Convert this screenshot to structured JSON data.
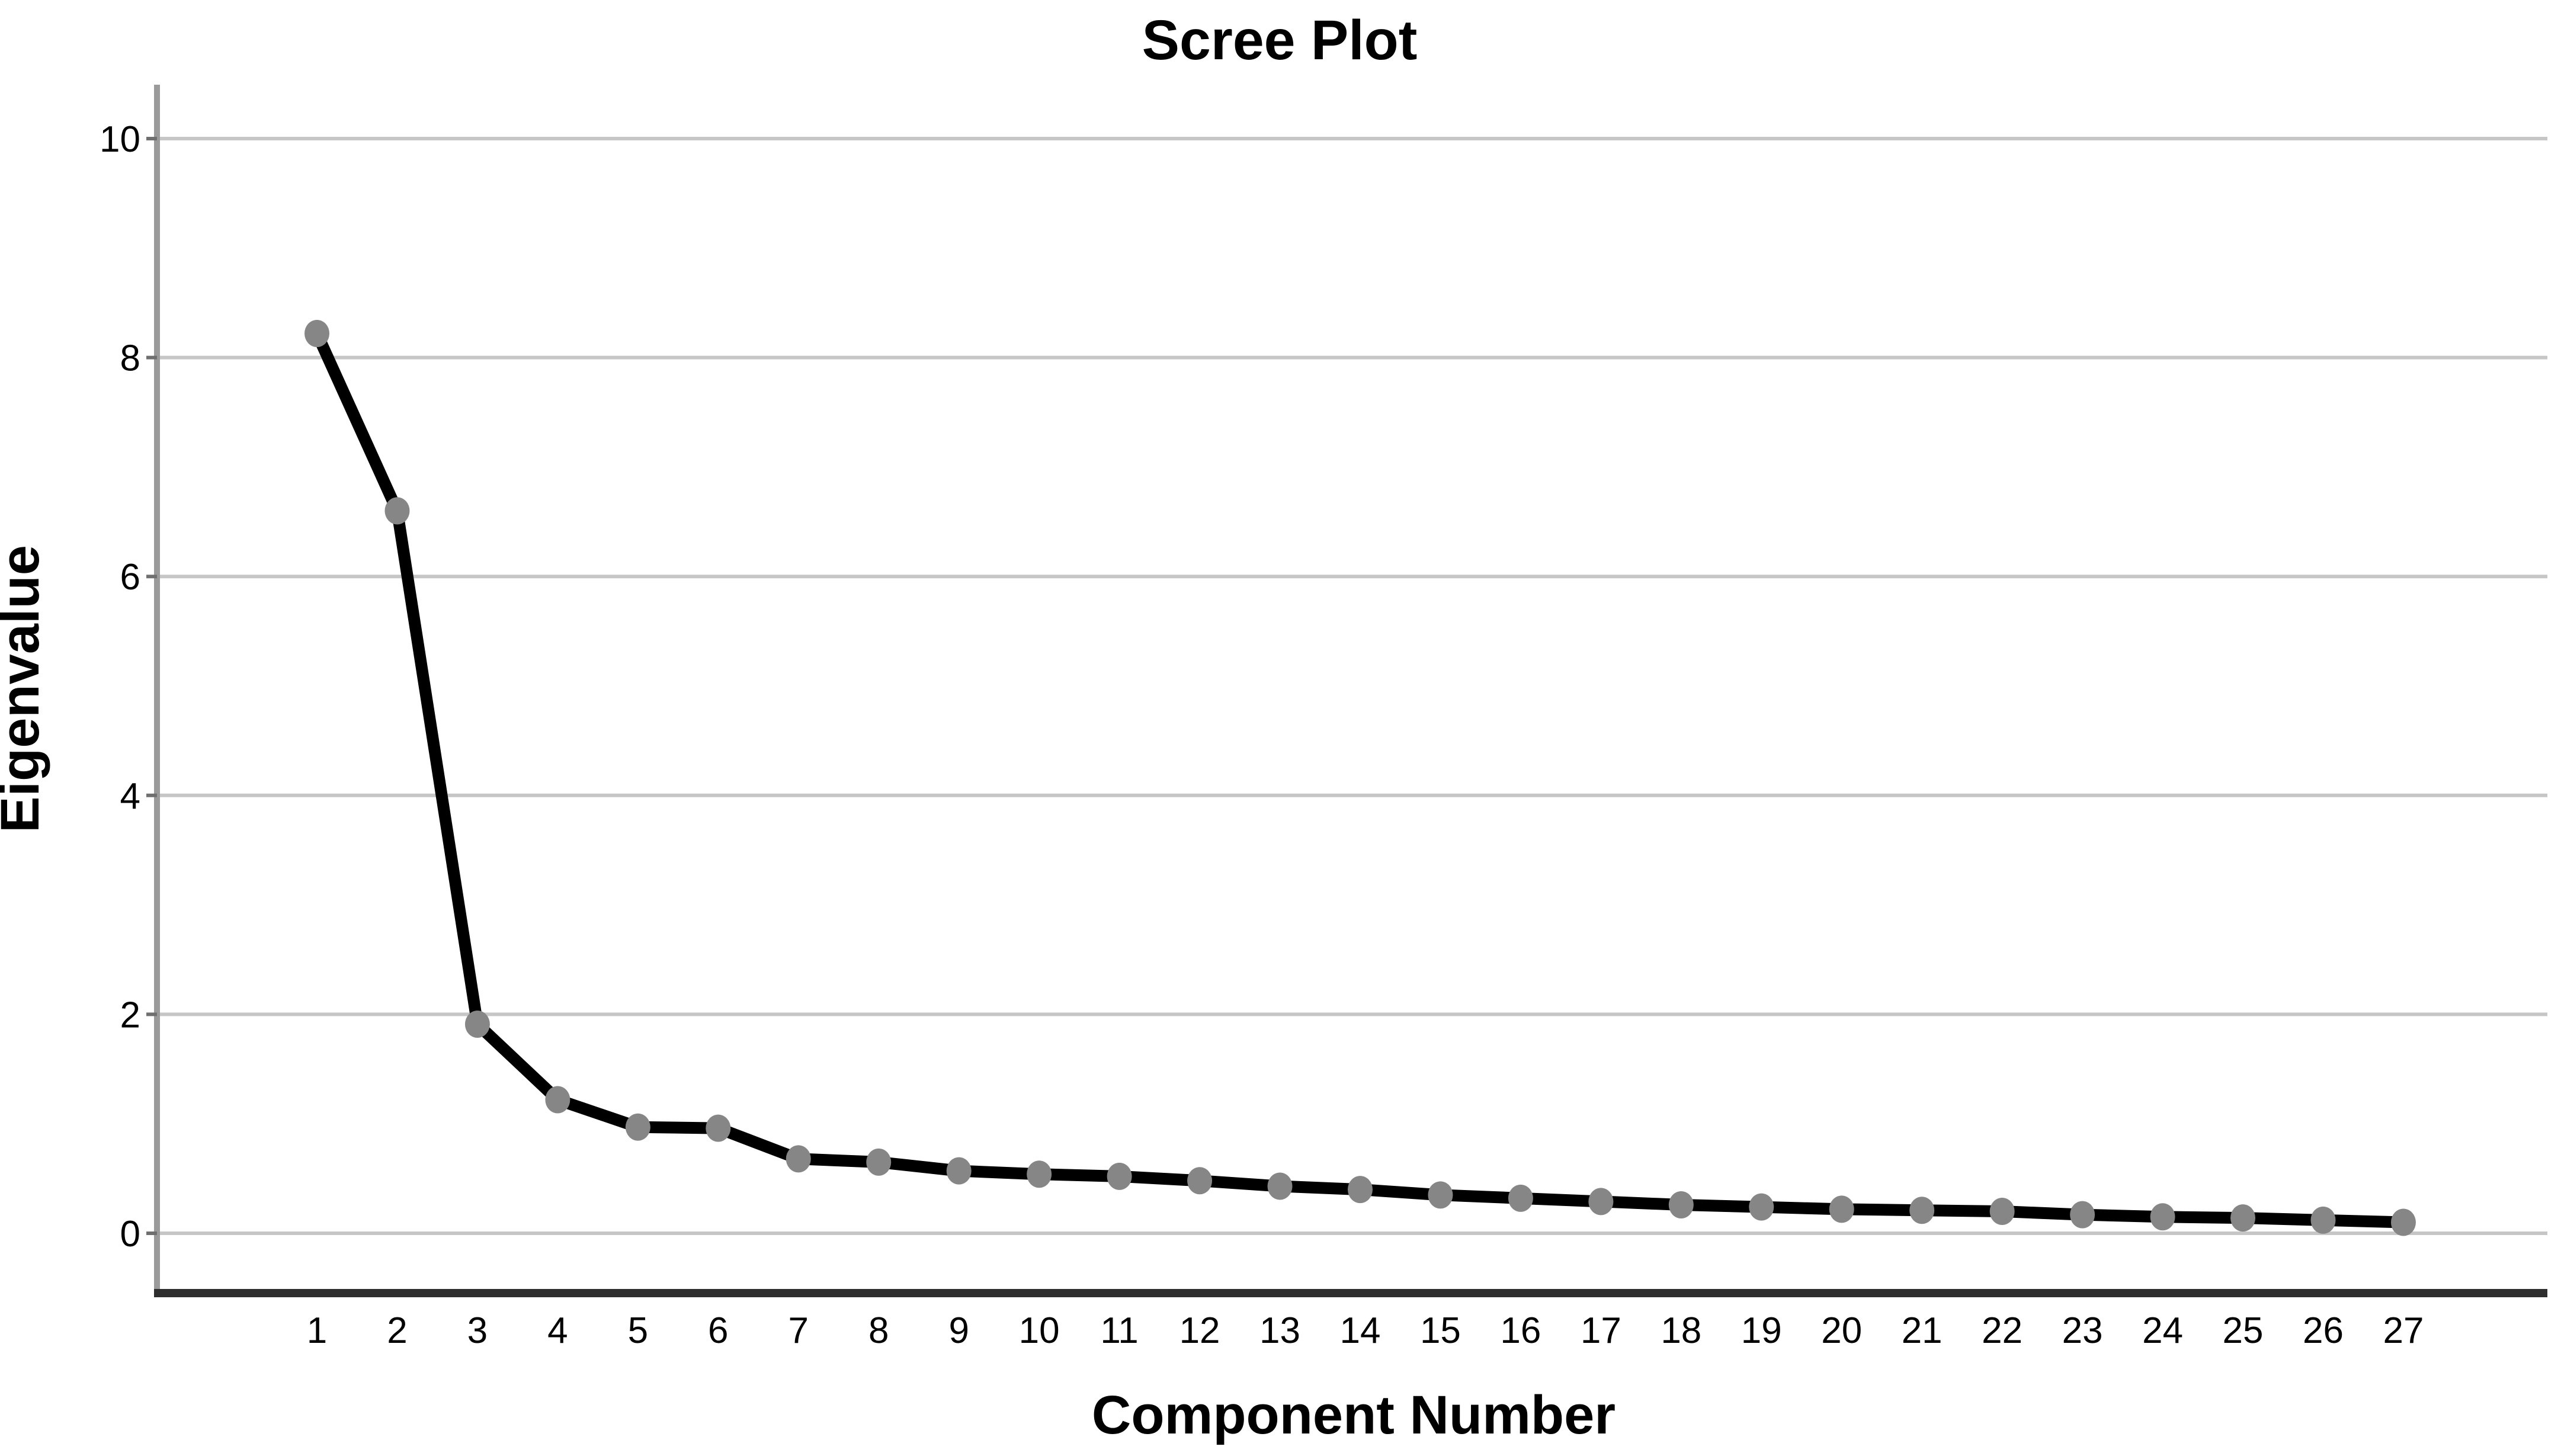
{
  "chart_data": {
    "type": "line",
    "title": "Scree Plot",
    "xlabel": "Component Number",
    "ylabel": "Eigenvalue",
    "x": [
      1,
      2,
      3,
      4,
      5,
      6,
      7,
      8,
      9,
      10,
      11,
      12,
      13,
      14,
      15,
      16,
      17,
      18,
      19,
      20,
      21,
      22,
      23,
      24,
      25,
      26,
      27
    ],
    "series": [
      {
        "name": "Eigenvalue",
        "values": [
          8.22,
          6.6,
          1.91,
          1.22,
          0.97,
          0.96,
          0.68,
          0.65,
          0.57,
          0.54,
          0.52,
          0.48,
          0.43,
          0.4,
          0.35,
          0.32,
          0.29,
          0.26,
          0.24,
          0.22,
          0.21,
          0.2,
          0.17,
          0.15,
          0.14,
          0.12,
          0.1
        ]
      }
    ],
    "y_ticks": [
      0,
      2,
      4,
      6,
      8,
      10
    ],
    "x_tick_labels": [
      "1",
      "2",
      "3",
      "4",
      "5",
      "6",
      "7",
      "8",
      "9",
      "10",
      "11",
      "12",
      "13",
      "14",
      "15",
      "16",
      "17",
      "18",
      "19",
      "20",
      "21",
      "22",
      "23",
      "24",
      "25",
      "26",
      "27"
    ],
    "ylim": [
      -0.55,
      10.5
    ],
    "xlim": [
      -1,
      28.8
    ],
    "grid": "horizontal-only",
    "legend": "none",
    "marker_shape": "circle",
    "colors": {
      "line": "#000000",
      "marker": "#868686",
      "gridline": "#c6c6c6",
      "spine_left": "#9a9a9a",
      "spine_bottom": "#2e2e2e",
      "tick": "#6f6f6f",
      "text": "#000000",
      "background": "#ffffff"
    }
  }
}
